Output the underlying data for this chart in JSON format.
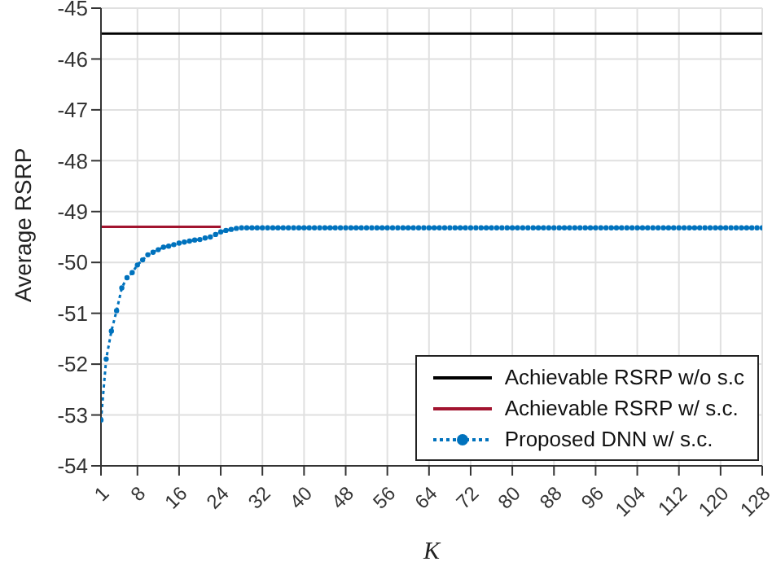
{
  "chart_data": {
    "type": "line",
    "xlabel": "K",
    "ylabel": "Average RSRP",
    "xlim": [
      1,
      128
    ],
    "xticks": [
      1,
      8,
      16,
      24,
      32,
      40,
      48,
      56,
      64,
      72,
      80,
      88,
      96,
      104,
      112,
      120,
      128
    ],
    "ylim": [
      -54,
      -45
    ],
    "yticks": [
      -54,
      -53,
      -52,
      -51,
      -50,
      -49,
      -48,
      -47,
      -46,
      -45
    ],
    "grid": true,
    "legend": "bottom right",
    "marker": "circle",
    "line_style": "dotted",
    "x": [
      1,
      2,
      3,
      4,
      5,
      6,
      7,
      8,
      9,
      10,
      11,
      12,
      13,
      14,
      15,
      16,
      17,
      18,
      19,
      20,
      21,
      22,
      23,
      24,
      25,
      26,
      27,
      28,
      29,
      30,
      31,
      32,
      33,
      34,
      35,
      36,
      37,
      38,
      39,
      40,
      41,
      42,
      43,
      44,
      45,
      46,
      47,
      48,
      49,
      50,
      51,
      52,
      53,
      54,
      55,
      56,
      57,
      58,
      59,
      60,
      61,
      62,
      63,
      64,
      65,
      66,
      67,
      68,
      69,
      70,
      71,
      72,
      73,
      74,
      75,
      76,
      77,
      78,
      79,
      80,
      81,
      82,
      83,
      84,
      85,
      86,
      87,
      88,
      89,
      90,
      91,
      92,
      93,
      94,
      95,
      96,
      97,
      98,
      99,
      100,
      101,
      102,
      103,
      104,
      105,
      106,
      107,
      108,
      109,
      110,
      111,
      112,
      113,
      114,
      115,
      116,
      117,
      118,
      119,
      120,
      121,
      122,
      123,
      124,
      125,
      126,
      127,
      128
    ],
    "series": [
      {
        "name": "Achievable RSRP w/o s.c",
        "color": "#000000",
        "line_style": "solid",
        "marker": "none",
        "values": [
          -45.5,
          -45.5,
          -45.5,
          -45.5,
          -45.5,
          -45.5,
          -45.5,
          -45.5,
          -45.5,
          -45.5,
          -45.5,
          -45.5,
          -45.5,
          -45.5,
          -45.5,
          -45.5,
          -45.5,
          -45.5,
          -45.5,
          -45.5,
          -45.5,
          -45.5,
          -45.5,
          -45.5,
          -45.5,
          -45.5,
          -45.5,
          -45.5,
          -45.5,
          -45.5,
          -45.5,
          -45.5,
          -45.5,
          -45.5,
          -45.5,
          -45.5,
          -45.5,
          -45.5,
          -45.5,
          -45.5,
          -45.5,
          -45.5,
          -45.5,
          -45.5,
          -45.5,
          -45.5,
          -45.5,
          -45.5,
          -45.5,
          -45.5,
          -45.5,
          -45.5,
          -45.5,
          -45.5,
          -45.5,
          -45.5,
          -45.5,
          -45.5,
          -45.5,
          -45.5,
          -45.5,
          -45.5,
          -45.5,
          -45.5,
          -45.5,
          -45.5,
          -45.5,
          -45.5,
          -45.5,
          -45.5,
          -45.5,
          -45.5,
          -45.5,
          -45.5,
          -45.5,
          -45.5,
          -45.5,
          -45.5,
          -45.5,
          -45.5,
          -45.5,
          -45.5,
          -45.5,
          -45.5,
          -45.5,
          -45.5,
          -45.5,
          -45.5,
          -45.5,
          -45.5,
          -45.5,
          -45.5,
          -45.5,
          -45.5,
          -45.5,
          -45.5,
          -45.5,
          -45.5,
          -45.5,
          -45.5,
          -45.5,
          -45.5,
          -45.5,
          -45.5,
          -45.5,
          -45.5,
          -45.5,
          -45.5,
          -45.5,
          -45.5,
          -45.5,
          -45.5,
          -45.5,
          -45.5,
          -45.5,
          -45.5,
          -45.5,
          -45.5,
          -45.5,
          -45.5,
          -45.5,
          -45.5,
          -45.5,
          -45.5,
          -45.5,
          -45.5,
          -45.5,
          -45.5
        ]
      },
      {
        "name": "Achievable RSRP w/ s.c.",
        "color": "#a2142f",
        "line_style": "solid",
        "marker": "none",
        "x": [
          1,
          24
        ],
        "values": [
          -49.3,
          -49.3
        ]
      },
      {
        "name": "Proposed DNN w/ s.c.",
        "color": "#0072bd",
        "values": [
          -53.1,
          -51.9,
          -51.35,
          -50.95,
          -50.5,
          -50.3,
          -50.2,
          -50.05,
          -49.95,
          -49.85,
          -49.8,
          -49.75,
          -49.7,
          -49.68,
          -49.65,
          -49.62,
          -49.6,
          -49.58,
          -49.56,
          -49.55,
          -49.52,
          -49.5,
          -49.45,
          -49.4,
          -49.37,
          -49.35,
          -49.33,
          -49.32,
          -49.32,
          -49.32,
          -49.32,
          -49.32,
          -49.32,
          -49.32,
          -49.32,
          -49.32,
          -49.32,
          -49.32,
          -49.32,
          -49.32,
          -49.32,
          -49.32,
          -49.32,
          -49.32,
          -49.32,
          -49.32,
          -49.32,
          -49.32,
          -49.32,
          -49.32,
          -49.32,
          -49.32,
          -49.32,
          -49.32,
          -49.32,
          -49.32,
          -49.32,
          -49.32,
          -49.32,
          -49.32,
          -49.32,
          -49.32,
          -49.32,
          -49.32,
          -49.32,
          -49.32,
          -49.32,
          -49.32,
          -49.32,
          -49.32,
          -49.32,
          -49.32,
          -49.32,
          -49.32,
          -49.32,
          -49.32,
          -49.32,
          -49.32,
          -49.32,
          -49.32,
          -49.32,
          -49.32,
          -49.32,
          -49.32,
          -49.32,
          -49.32,
          -49.32,
          -49.32,
          -49.32,
          -49.32,
          -49.32,
          -49.32,
          -49.32,
          -49.32,
          -49.32,
          -49.32,
          -49.32,
          -49.32,
          -49.32,
          -49.32,
          -49.32,
          -49.32,
          -49.32,
          -49.32,
          -49.32,
          -49.32,
          -49.32,
          -49.32,
          -49.32,
          -49.32,
          -49.32,
          -49.32,
          -49.32,
          -49.32,
          -49.32,
          -49.32,
          -49.32,
          -49.32,
          -49.32,
          -49.32,
          -49.32,
          -49.32,
          -49.32,
          -49.32,
          -49.32,
          -49.32,
          -49.32,
          -49.32
        ]
      }
    ]
  }
}
